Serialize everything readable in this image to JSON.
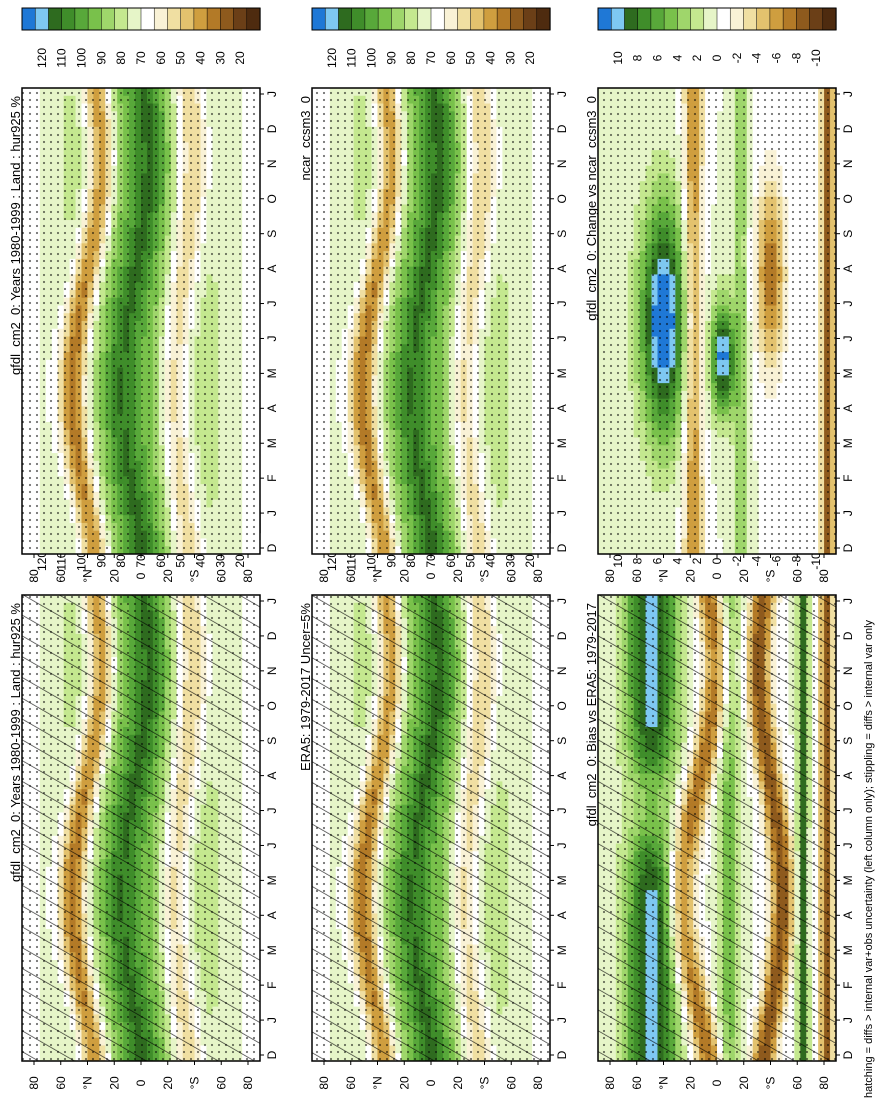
{
  "figure": {
    "footer_note": "hatching = diffs > internal var+obs uncertainty (left column only); stippling = diffs > internal var only"
  },
  "colors": {
    "hur_levels": [
      "#1f78d6",
      "#7ec8f2",
      "#2e6b1f",
      "#3f8d2a",
      "#58a83a",
      "#79c14b",
      "#9fd66b",
      "#c4e88f",
      "#e6f5c8",
      "#ffffff",
      "#f9f2d6",
      "#f0dfa2",
      "#e3c26e",
      "#cf9e3f",
      "#b37a27",
      "#8e5a1d",
      "#6b3f17",
      "#4e2b0f"
    ],
    "diff_levels": [
      "#1f78d6",
      "#7ec8f2",
      "#2e6b1f",
      "#3f8d2a",
      "#58a83a",
      "#79c14b",
      "#9fd66b",
      "#c4e88f",
      "#e6f5c8",
      "#ffffff",
      "#f9f2d6",
      "#f0dfa2",
      "#e3c26e",
      "#cf9e3f",
      "#b37a27",
      "#8e5a1d",
      "#6b3f17",
      "#4e2b0f"
    ]
  },
  "chart_data": [
    {
      "type": "heatmap",
      "title": "gfdl_cm2_0: Years 1980-1999 : Land : hur925 %",
      "x_ticks": [
        "D",
        "J",
        "F",
        "M",
        "A",
        "M",
        "J",
        "J",
        "A",
        "S",
        "O",
        "N",
        "D",
        "J"
      ],
      "y_ticks": [
        "80",
        "60",
        "°N",
        "20",
        "0",
        "20",
        "°S",
        "60",
        "80"
      ],
      "colorbar_ticks": [
        "120",
        "110",
        "100",
        "90",
        "80",
        "70",
        "60",
        "50",
        "40",
        "30",
        "20"
      ],
      "hatching": true
    },
    {
      "type": "heatmap",
      "title": "gfdl_cm2_0: Years 1980-1999 : Land : hur925 %",
      "x_ticks": [
        "D",
        "J",
        "F",
        "M",
        "A",
        "M",
        "J",
        "J",
        "A",
        "S",
        "O",
        "N",
        "D",
        "J"
      ],
      "y_ticks": [
        "80",
        "60",
        "°N",
        "20",
        "0",
        "20",
        "°S",
        "60",
        "80"
      ],
      "colorbar_ticks": [
        "120",
        "110",
        "100",
        "90",
        "80",
        "70",
        "60",
        "50",
        "40",
        "30",
        "20"
      ],
      "hatching": false
    },
    {
      "type": "heatmap",
      "title": "ERA5: 1979-2017 Uncer=5%",
      "x_ticks": [
        "D",
        "J",
        "F",
        "M",
        "A",
        "M",
        "J",
        "J",
        "A",
        "S",
        "O",
        "N",
        "D",
        "J"
      ],
      "y_ticks": [
        "80",
        "60",
        "°N",
        "20",
        "0",
        "20",
        "°S",
        "60",
        "80"
      ],
      "colorbar_ticks": [
        "120",
        "110",
        "100",
        "90",
        "80",
        "70",
        "60",
        "50",
        "40",
        "30",
        "20"
      ],
      "hatching": true
    },
    {
      "type": "heatmap",
      "title": "ncar_ccsm3_0",
      "x_ticks": [
        "D",
        "J",
        "F",
        "M",
        "A",
        "M",
        "J",
        "J",
        "A",
        "S",
        "O",
        "N",
        "D",
        "J"
      ],
      "y_ticks": [
        "80",
        "60",
        "°N",
        "20",
        "0",
        "20",
        "°S",
        "60",
        "80"
      ],
      "colorbar_ticks": [
        "120",
        "110",
        "100",
        "90",
        "80",
        "70",
        "60",
        "50",
        "40",
        "30",
        "20"
      ],
      "hatching": false
    },
    {
      "type": "heatmap",
      "title": "gfdl_cm2_0: Bias vs ERA5: 1979-2017",
      "x_ticks": [
        "D",
        "J",
        "F",
        "M",
        "A",
        "M",
        "J",
        "J",
        "A",
        "S",
        "O",
        "N",
        "D",
        "J"
      ],
      "y_ticks": [
        "80",
        "60",
        "°N",
        "20",
        "0",
        "20",
        "°S",
        "60",
        "80"
      ],
      "colorbar_ticks": [
        "10",
        "8",
        "6",
        "4",
        "2",
        "0",
        "-2",
        "-4",
        "-6",
        "-8",
        "-10"
      ],
      "hatching": true
    },
    {
      "type": "heatmap",
      "title": "gfdl_cm2_0: Change vs ncar_ccsm3_0",
      "x_ticks": [
        "D",
        "J",
        "F",
        "M",
        "A",
        "M",
        "J",
        "J",
        "A",
        "S",
        "O",
        "N",
        "D",
        "J"
      ],
      "y_ticks": [
        "80",
        "60",
        "°N",
        "20",
        "0",
        "20",
        "°S",
        "60",
        "80"
      ],
      "colorbar_ticks": [
        "10",
        "8",
        "6",
        "4",
        "2",
        "0",
        "-2",
        "-4",
        "-6",
        "-8",
        "-10"
      ],
      "hatching": false
    }
  ]
}
